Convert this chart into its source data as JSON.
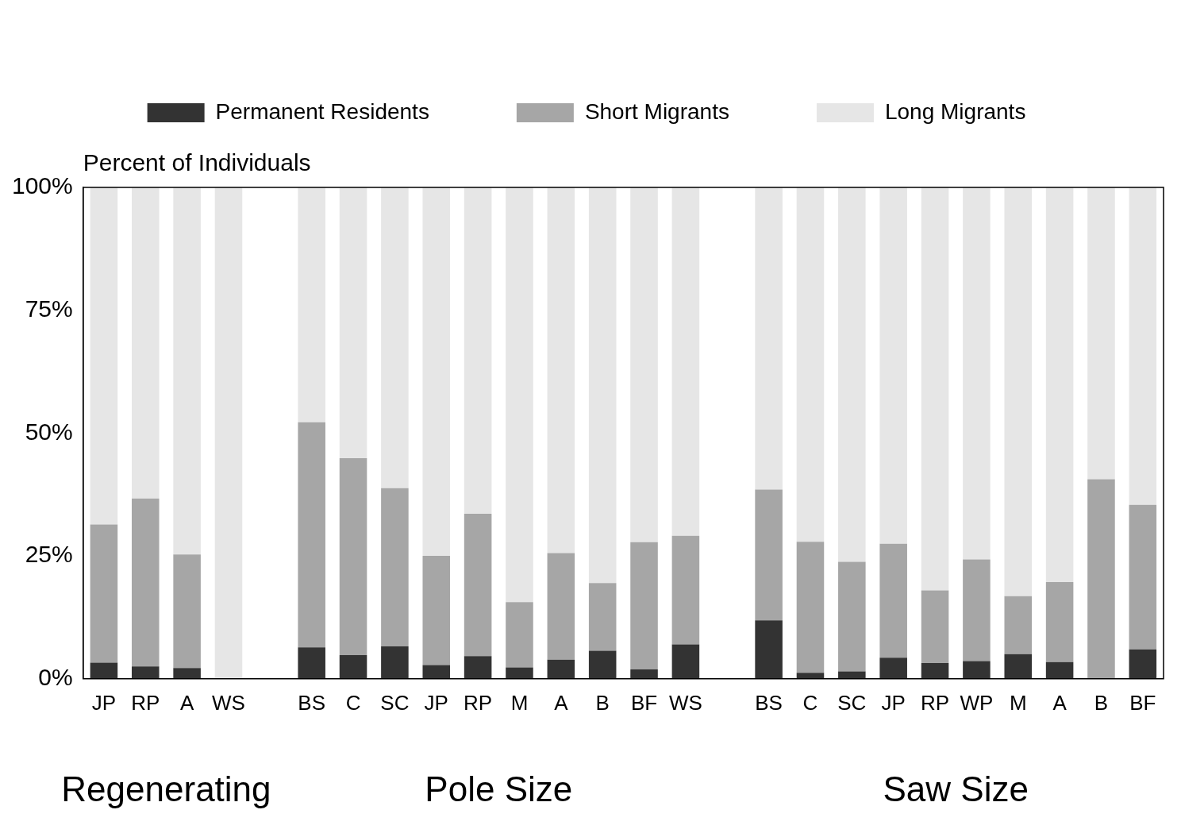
{
  "chart_data": {
    "type": "bar",
    "stacked": true,
    "ylabel": "Percent of Individuals",
    "categories": [
      "JP",
      "RP",
      "A",
      "WS",
      null,
      "BS",
      "C",
      "SC",
      "JP",
      "RP",
      "M",
      "A",
      "B",
      "BF",
      "WS",
      null,
      "BS",
      "C",
      "SC",
      "JP",
      "RP",
      "WP",
      "M",
      "A",
      "B",
      "BF"
    ],
    "series": [
      {
        "name": "Permanent Residents",
        "color": "#333333",
        "values": [
          3.3,
          2.5,
          2.2,
          0,
          null,
          6.4,
          4.8,
          6.6,
          2.8,
          4.6,
          2.3,
          3.9,
          5.7,
          1.9,
          7.0,
          null,
          11.9,
          1.2,
          1.5,
          4.3,
          3.2,
          3.6,
          5.0,
          3.4,
          0,
          6.0
        ]
      },
      {
        "name": "Short Migrants",
        "color": "#a6a6a6",
        "values": [
          28.1,
          34.2,
          23.1,
          0,
          null,
          45.8,
          40.1,
          32.2,
          22.2,
          29.0,
          13.3,
          21.7,
          13.8,
          25.9,
          22.1,
          null,
          26.6,
          26.7,
          22.3,
          23.2,
          14.8,
          20.7,
          11.8,
          16.3,
          40.6,
          29.4
        ]
      },
      {
        "name": "Long Migrants",
        "color": "#e6e6e6",
        "values": [
          68.6,
          63.3,
          74.7,
          100,
          null,
          47.8,
          55.1,
          61.2,
          75.0,
          66.4,
          84.4,
          74.4,
          80.5,
          72.2,
          70.9,
          null,
          61.5,
          72.1,
          76.2,
          72.5,
          82.0,
          75.7,
          83.2,
          80.3,
          59.4,
          64.6
        ]
      }
    ],
    "ylim": [
      0,
      100
    ],
    "yticks": [
      {
        "value": 0,
        "label": "0%"
      },
      {
        "value": 25,
        "label": "25%"
      },
      {
        "value": 50,
        "label": "50%"
      },
      {
        "value": 75,
        "label": "75%"
      },
      {
        "value": 100,
        "label": "100%"
      }
    ],
    "grid": false,
    "legend": "top",
    "annotations": [
      "Regenerating",
      "Pole Size",
      "Saw Size"
    ]
  }
}
